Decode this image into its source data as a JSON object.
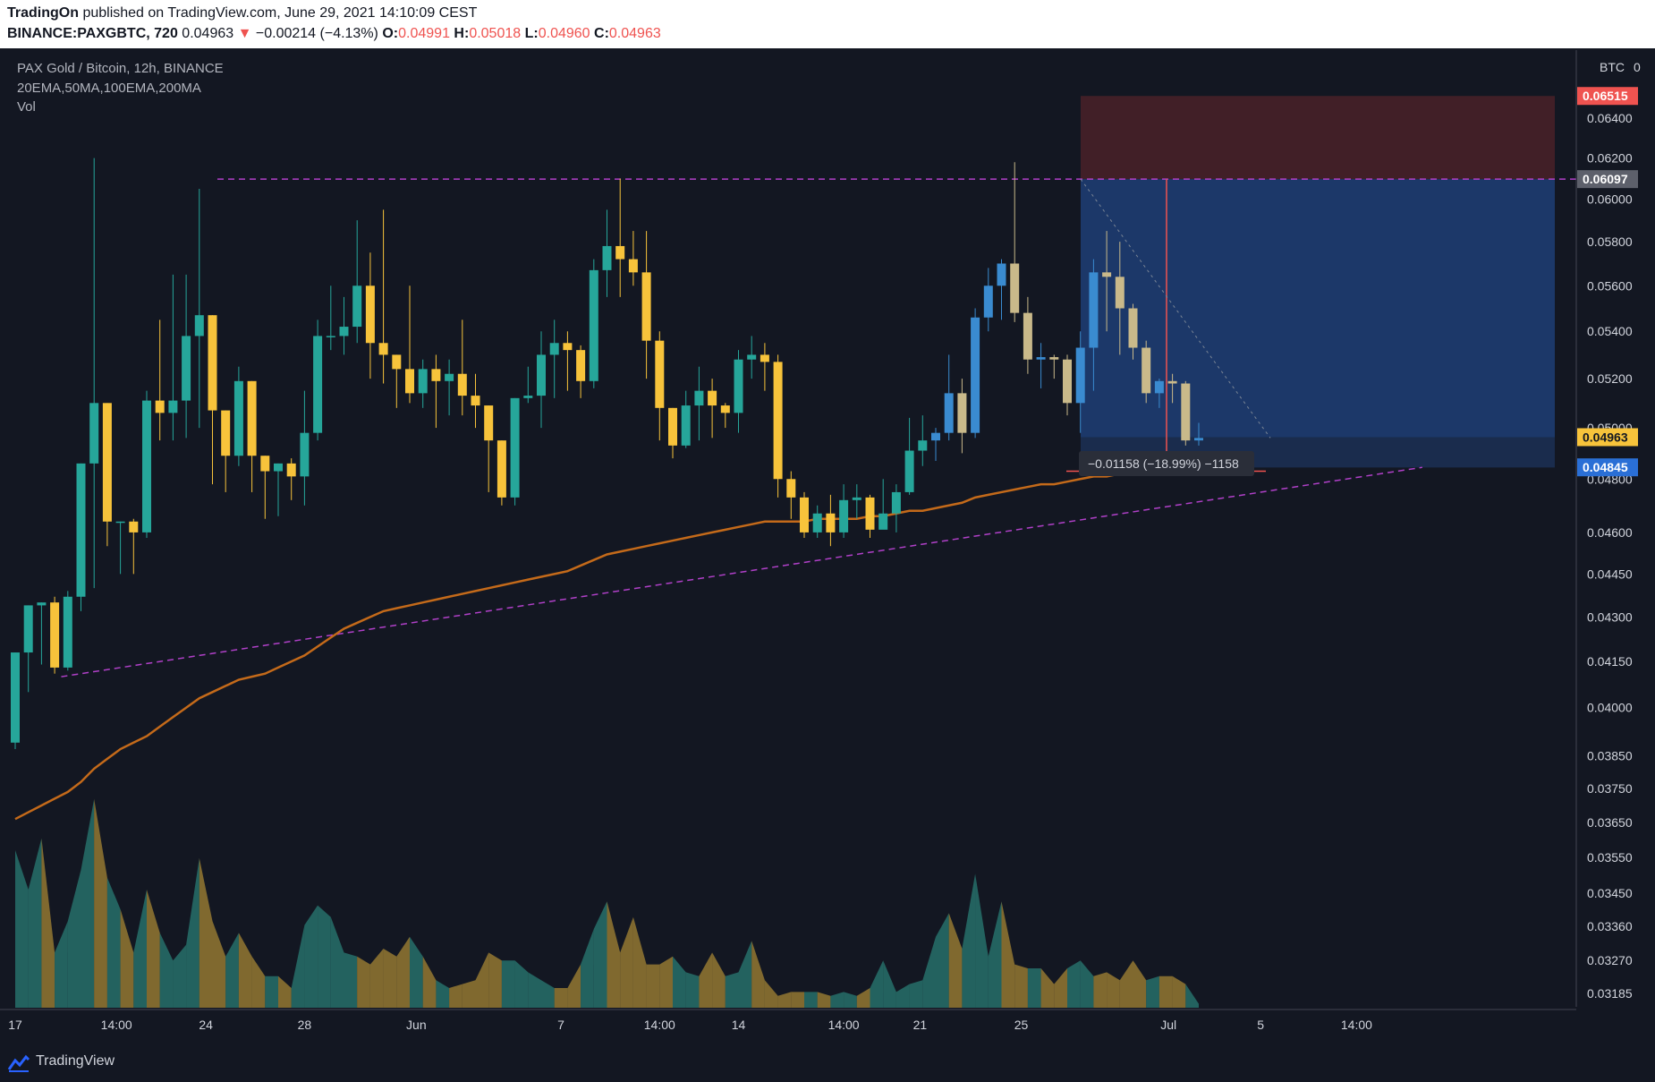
{
  "header": {
    "author": "TradingOn",
    "published": "published on TradingView.com, June 29, 2021 14:10:09 CEST",
    "symbol": "BINANCE:PAXGBTC, 720",
    "last": "0.04963",
    "change_arrow": "▼",
    "change": "−0.00214 (−4.13%)",
    "o_label": "O:",
    "o": "0.04991",
    "h_label": "H:",
    "h": "0.05018",
    "l_label": "L:",
    "l": "0.04960",
    "c_label": "C:",
    "c": "0.04963"
  },
  "legend": {
    "title": "PAX Gold / Bitcoin, 12h, BINANCE",
    "indicators": "20EMA,50MA,100EMA,200MA",
    "volume": "Vol"
  },
  "footer": {
    "brand": "TradingView",
    "logo_icon": "tradingview-logo-icon"
  },
  "colors": {
    "background": "#131722",
    "up": "#26a69a",
    "down": "#f7c33b",
    "ma": "#c46a1a",
    "trendline": "#b040c8",
    "stop_zone": "#4a2128",
    "target_zone": "#1f3e75",
    "price_badge_last": "#f7c33b",
    "price_badge_stop": "#ef5350",
    "price_badge_target": "#2a6fd6"
  },
  "chart_data": {
    "type": "candlestick",
    "title": "PAX Gold / Bitcoin, 12h, BINANCE",
    "y_axis_unit": "BTC",
    "y_scale": "log",
    "ylim": [
      0.0316,
      0.067
    ],
    "y_ticks": [
      "0.06400",
      "0.06200",
      "0.06000",
      "0.05800",
      "0.05600",
      "0.05400",
      "0.05200",
      "0.05000",
      "0.04800",
      "0.04600",
      "0.04450",
      "0.04300",
      "0.04150",
      "0.04000",
      "0.03850",
      "0.03750",
      "0.03650",
      "0.03550",
      "0.03450",
      "0.03360",
      "0.03270",
      "0.03185"
    ],
    "x_ticks": [
      "17",
      "14:00",
      "24",
      "28",
      "Jun",
      "7",
      "14:00",
      "14",
      "14:00",
      "21",
      "25",
      "Jul",
      "5",
      "14:00"
    ],
    "x_tick_index": [
      0,
      7.7,
      14.5,
      22,
      30.5,
      41.5,
      49,
      55,
      63,
      68.8,
      76.5,
      87.7,
      94.7,
      102
    ],
    "candles": [
      [
        0.0389,
        0.0418,
        0.0387,
        0.0418
      ],
      [
        0.0418,
        0.0434,
        0.0405,
        0.0434
      ],
      [
        0.0434,
        0.0435,
        0.0414,
        0.0435
      ],
      [
        0.0435,
        0.0413,
        0.0411,
        0.0437
      ],
      [
        0.0413,
        0.0437,
        0.0412,
        0.0439
      ],
      [
        0.0437,
        0.0486,
        0.0432,
        0.0486
      ],
      [
        0.0486,
        0.051,
        0.044,
        0.062
      ],
      [
        0.051,
        0.0464,
        0.0455,
        0.051
      ],
      [
        0.0464,
        0.0464,
        0.0445,
        0.0464
      ],
      [
        0.0464,
        0.046,
        0.0445,
        0.0465
      ],
      [
        0.046,
        0.0511,
        0.0458,
        0.0515
      ],
      [
        0.0511,
        0.0506,
        0.0495,
        0.0545
      ],
      [
        0.0506,
        0.0511,
        0.0495,
        0.0565
      ],
      [
        0.0511,
        0.0538,
        0.0496,
        0.0565
      ],
      [
        0.0538,
        0.0547,
        0.05,
        0.0605
      ],
      [
        0.0547,
        0.0507,
        0.0478,
        0.0547
      ],
      [
        0.0507,
        0.0489,
        0.0475,
        0.0507
      ],
      [
        0.0489,
        0.0519,
        0.0485,
        0.0525
      ],
      [
        0.0519,
        0.0489,
        0.0475,
        0.0519
      ],
      [
        0.0489,
        0.0483,
        0.0465,
        0.0489
      ],
      [
        0.0483,
        0.0486,
        0.0466,
        0.0486
      ],
      [
        0.0486,
        0.0481,
        0.0472,
        0.0488
      ],
      [
        0.0481,
        0.0498,
        0.047,
        0.0515
      ],
      [
        0.0498,
        0.0538,
        0.0495,
        0.0545
      ],
      [
        0.0538,
        0.0538,
        0.0532,
        0.056
      ],
      [
        0.0538,
        0.0542,
        0.053,
        0.0555
      ],
      [
        0.0542,
        0.056,
        0.0535,
        0.059
      ],
      [
        0.056,
        0.0535,
        0.052,
        0.0575
      ],
      [
        0.0535,
        0.053,
        0.0518,
        0.0595
      ],
      [
        0.053,
        0.0524,
        0.0508,
        0.053
      ],
      [
        0.0524,
        0.0514,
        0.051,
        0.056
      ],
      [
        0.0514,
        0.0524,
        0.0508,
        0.0528
      ],
      [
        0.0524,
        0.0519,
        0.05,
        0.053
      ],
      [
        0.0519,
        0.0522,
        0.0505,
        0.0528
      ],
      [
        0.0522,
        0.0513,
        0.0505,
        0.0545
      ],
      [
        0.0513,
        0.0509,
        0.05,
        0.0522
      ],
      [
        0.0509,
        0.0495,
        0.0475,
        0.0509
      ],
      [
        0.0495,
        0.0473,
        0.047,
        0.0495
      ],
      [
        0.0473,
        0.0512,
        0.047,
        0.0512
      ],
      [
        0.0512,
        0.0513,
        0.051,
        0.0525
      ],
      [
        0.0513,
        0.053,
        0.05,
        0.054
      ],
      [
        0.053,
        0.0535,
        0.0512,
        0.0545
      ],
      [
        0.0535,
        0.0532,
        0.0515,
        0.054
      ],
      [
        0.0532,
        0.0519,
        0.0512,
        0.0534
      ],
      [
        0.0519,
        0.0567,
        0.0516,
        0.0572
      ],
      [
        0.0567,
        0.0578,
        0.0555,
        0.0595
      ],
      [
        0.0578,
        0.0572,
        0.0555,
        0.061
      ],
      [
        0.0572,
        0.0566,
        0.056,
        0.0585
      ],
      [
        0.0566,
        0.0536,
        0.052,
        0.0585
      ],
      [
        0.0536,
        0.0508,
        0.0495,
        0.054
      ],
      [
        0.0508,
        0.0493,
        0.0488,
        0.0508
      ],
      [
        0.0493,
        0.0509,
        0.0492,
        0.0515
      ],
      [
        0.0509,
        0.0515,
        0.0495,
        0.0525
      ],
      [
        0.0515,
        0.0509,
        0.0496,
        0.052
      ],
      [
        0.0509,
        0.0506,
        0.05,
        0.051
      ],
      [
        0.0506,
        0.0528,
        0.0498,
        0.0532
      ],
      [
        0.0528,
        0.053,
        0.052,
        0.0538
      ],
      [
        0.053,
        0.0527,
        0.0515,
        0.0535
      ],
      [
        0.0527,
        0.048,
        0.0473,
        0.053
      ],
      [
        0.048,
        0.0473,
        0.0465,
        0.0483
      ],
      [
        0.0473,
        0.046,
        0.0458,
        0.0475
      ],
      [
        0.046,
        0.0467,
        0.0458,
        0.047
      ],
      [
        0.0467,
        0.046,
        0.0455,
        0.0474
      ],
      [
        0.046,
        0.0472,
        0.0458,
        0.0478
      ],
      [
        0.0472,
        0.0473,
        0.0465,
        0.0478
      ],
      [
        0.0473,
        0.0461,
        0.0458,
        0.0474
      ],
      [
        0.0461,
        0.0467,
        0.0462,
        0.048
      ],
      [
        0.0467,
        0.0475,
        0.046,
        0.0478
      ],
      [
        0.0475,
        0.0491,
        0.0474,
        0.0504
      ],
      [
        0.0491,
        0.0495,
        0.0485,
        0.0505
      ],
      [
        0.0495,
        0.0498,
        0.0487,
        0.05
      ],
      [
        0.0498,
        0.0514,
        0.0495,
        0.053
      ],
      [
        0.0514,
        0.0498,
        0.049,
        0.052
      ],
      [
        0.0498,
        0.0546,
        0.0496,
        0.055
      ],
      [
        0.0546,
        0.056,
        0.054,
        0.0568
      ],
      [
        0.056,
        0.057,
        0.0545,
        0.0572
      ],
      [
        0.057,
        0.0548,
        0.0544,
        0.0618
      ],
      [
        0.0548,
        0.0528,
        0.0522,
        0.0555
      ],
      [
        0.0528,
        0.0529,
        0.0516,
        0.0535
      ],
      [
        0.0529,
        0.0528,
        0.052,
        0.053
      ],
      [
        0.0528,
        0.051,
        0.0505,
        0.053
      ],
      [
        0.051,
        0.0533,
        0.0498,
        0.054
      ],
      [
        0.0533,
        0.0566,
        0.0515,
        0.0572
      ],
      [
        0.0566,
        0.0564,
        0.054,
        0.0585
      ],
      [
        0.0564,
        0.055,
        0.053,
        0.058
      ],
      [
        0.055,
        0.0533,
        0.0528,
        0.0552
      ],
      [
        0.0533,
        0.0514,
        0.051,
        0.0536
      ],
      [
        0.0514,
        0.0519,
        0.0508,
        0.052
      ],
      [
        0.0519,
        0.0518,
        0.051,
        0.0522
      ],
      [
        0.0518,
        0.0495,
        0.0493,
        0.0519
      ],
      [
        0.0495,
        0.0496,
        0.0493,
        0.0502
      ]
    ],
    "volume": [
      4.0,
      3.0,
      4.3,
      1.4,
      2.2,
      3.5,
      5.3,
      3.3,
      2.5,
      1.4,
      3.0,
      1.9,
      1.2,
      1.6,
      3.8,
      2.2,
      1.3,
      1.9,
      1.3,
      0.8,
      0.8,
      0.5,
      2.1,
      2.6,
      2.3,
      1.4,
      1.3,
      1.1,
      1.5,
      1.3,
      1.8,
      1.3,
      0.7,
      0.5,
      0.6,
      0.7,
      1.4,
      1.2,
      1.2,
      0.9,
      0.7,
      0.5,
      0.5,
      1.1,
      2.0,
      2.7,
      1.4,
      2.3,
      1.1,
      1.1,
      1.3,
      0.9,
      0.8,
      1.4,
      0.8,
      0.9,
      1.7,
      0.7,
      0.3,
      0.4,
      0.4,
      0.4,
      0.3,
      0.4,
      0.3,
      0.5,
      1.2,
      0.4,
      0.6,
      0.7,
      1.8,
      2.4,
      1.5,
      3.4,
      1.3,
      2.7,
      1.1,
      1.0,
      1.0,
      0.6,
      1.0,
      1.2,
      0.8,
      0.9,
      0.7,
      1.2,
      0.7,
      0.8,
      0.8,
      0.6,
      0.1
    ],
    "ma": [
      0.0366,
      0.0368,
      0.037,
      0.0372,
      0.0374,
      0.0377,
      0.0381,
      0.0384,
      0.0387,
      0.0389,
      0.0391,
      0.0394,
      0.0397,
      0.04,
      0.0403,
      0.0405,
      0.0407,
      0.0409,
      0.041,
      0.0411,
      0.0413,
      0.0415,
      0.0417,
      0.042,
      0.0423,
      0.0426,
      0.0428,
      0.043,
      0.0432,
      0.0433,
      0.0434,
      0.0435,
      0.0436,
      0.0437,
      0.0438,
      0.0439,
      0.044,
      0.0441,
      0.0442,
      0.0443,
      0.0444,
      0.0445,
      0.0446,
      0.0448,
      0.045,
      0.0452,
      0.0453,
      0.0454,
      0.0455,
      0.0456,
      0.0457,
      0.0458,
      0.0459,
      0.046,
      0.0461,
      0.0462,
      0.0463,
      0.0464,
      0.0464,
      0.0464,
      0.0464,
      0.0465,
      0.0465,
      0.0465,
      0.0465,
      0.0466,
      0.0466,
      0.0467,
      0.0468,
      0.0468,
      0.0469,
      0.047,
      0.0471,
      0.0473,
      0.0474,
      0.0475,
      0.0476,
      0.0477,
      0.0478,
      0.0478,
      0.0479,
      0.048,
      0.0481,
      0.0481,
      0.0482,
      0.0482,
      0.0483,
      0.0483,
      0.0484,
      0.0484,
      0.0484
    ],
    "trendline_top": 0.06097,
    "trendline_bottom": [
      [
        3.5,
        0.041
      ],
      [
        107,
        0.04845
      ]
    ],
    "position": {
      "type": "short",
      "entry": 0.06097,
      "stop": 0.06515,
      "target": 0.04845,
      "current": 0.04963,
      "measure_label": "−0.01158 (−18.99%) −1158"
    },
    "price_badges": {
      "stop": "0.06515",
      "entry": "0.06097",
      "last": "0.04963",
      "target": "0.04845",
      "unit": "BTC",
      "unit_suffix": "0"
    }
  }
}
